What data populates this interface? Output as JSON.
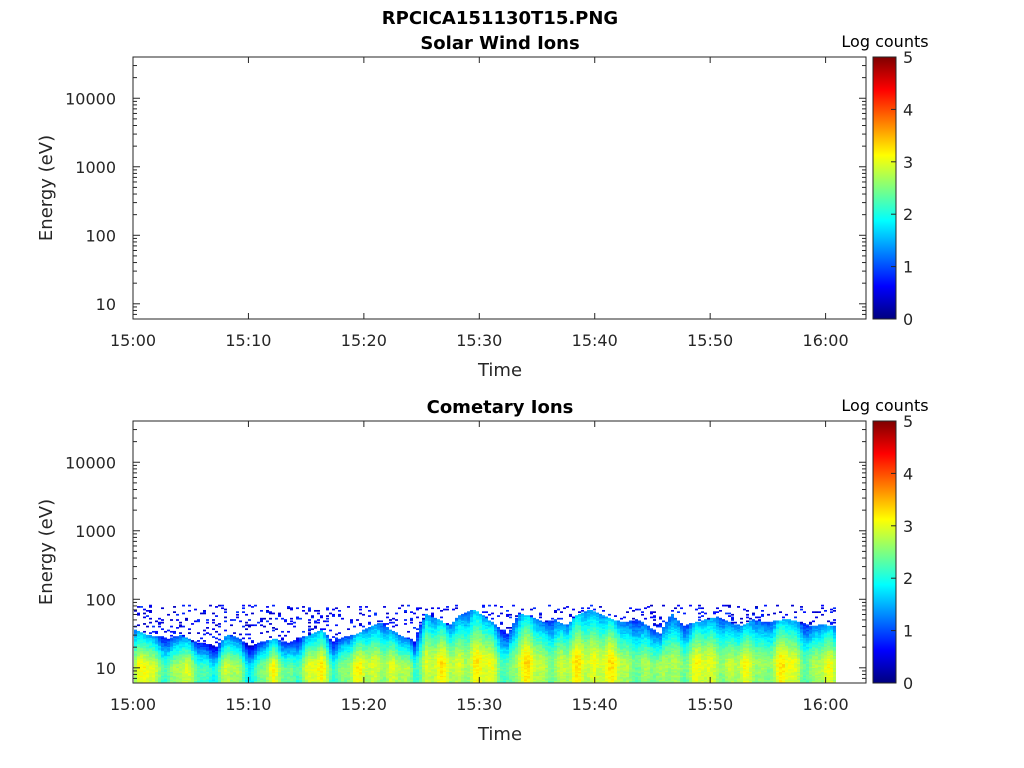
{
  "figure": {
    "title": "RPCICA151130T15.PNG"
  },
  "colors": {
    "colormap": [
      "#00007f",
      "#0000ff",
      "#007fff",
      "#00ffff",
      "#7fff7f",
      "#ffff00",
      "#ff7f00",
      "#ff0000",
      "#7f0000"
    ],
    "axis": "#262626"
  },
  "chart_data": [
    {
      "type": "heatmap",
      "title": "Solar Wind Ions",
      "xlabel": "Time",
      "ylabel": "Energy (eV)",
      "x_ticks": [
        "15:00",
        "15:10",
        "15:20",
        "15:30",
        "15:40",
        "15:50",
        "16:00"
      ],
      "x_tick_minutes": [
        0,
        10,
        20,
        30,
        40,
        50,
        60
      ],
      "xlim_minutes": [
        0,
        63.5
      ],
      "y_scale": "log",
      "ylim": [
        6,
        40000
      ],
      "y_ticks": [
        "10",
        "100",
        "1000",
        "10000"
      ],
      "y_tick_values": [
        10,
        100,
        1000,
        10000
      ],
      "colorbar": {
        "label": "Log counts",
        "ticks": [
          "0",
          "1",
          "2",
          "3",
          "4",
          "5"
        ],
        "range": [
          0,
          5
        ]
      },
      "data_description": "no counts"
    },
    {
      "type": "heatmap",
      "title": "Cometary Ions",
      "xlabel": "Time",
      "ylabel": "Energy (eV)",
      "x_ticks": [
        "15:00",
        "15:10",
        "15:20",
        "15:30",
        "15:40",
        "15:50",
        "16:00"
      ],
      "x_tick_minutes": [
        0,
        10,
        20,
        30,
        40,
        50,
        60
      ],
      "xlim_minutes": [
        0,
        63.5
      ],
      "y_scale": "log",
      "ylim": [
        6,
        40000
      ],
      "y_ticks": [
        "10",
        "100",
        "1000",
        "10000"
      ],
      "y_tick_values": [
        10,
        100,
        1000,
        10000
      ],
      "colorbar": {
        "label": "Log counts",
        "ticks": [
          "0",
          "1",
          "2",
          "3",
          "4",
          "5"
        ],
        "range": [
          0,
          5
        ]
      },
      "data_end_minute": 60.7,
      "band_top_energy_ev": [
        35,
        30,
        28,
        26,
        30,
        24,
        22,
        20,
        30,
        26,
        20,
        24,
        26,
        22,
        26,
        30,
        35,
        24,
        28,
        30,
        38,
        45,
        35,
        28,
        24,
        60,
        50,
        40,
        60,
        70,
        55,
        40,
        30,
        60,
        55,
        45,
        50,
        40,
        60,
        70,
        60,
        50,
        45,
        50,
        40,
        30,
        60,
        40,
        45,
        50,
        55,
        45,
        40,
        50,
        45,
        48,
        50,
        45,
        40,
        42,
        40
      ],
      "peak_log_counts": [
        3.0,
        3.3,
        3.0,
        2.9,
        3.1,
        2.8,
        2.7,
        2.6,
        3.0,
        2.8,
        2.5,
        2.9,
        3.1,
        2.8,
        2.9,
        3.1,
        3.3,
        2.8,
        3.0,
        3.1,
        3.2,
        3.4,
        3.1,
        2.9,
        2.7,
        3.4,
        3.2,
        3.1,
        3.3,
        3.4,
        3.2,
        3.0,
        2.8,
        3.3,
        3.2,
        3.1,
        3.2,
        3.0,
        3.3,
        3.5,
        3.4,
        3.2,
        3.0,
        3.1,
        2.9,
        2.6,
        3.3,
        3.0,
        3.1,
        3.2,
        3.3,
        3.1,
        3.0,
        3.2,
        3.1,
        3.2,
        3.3,
        3.1,
        3.0,
        3.1,
        3.0
      ],
      "scatter_max_energy_ev": 80
    }
  ]
}
